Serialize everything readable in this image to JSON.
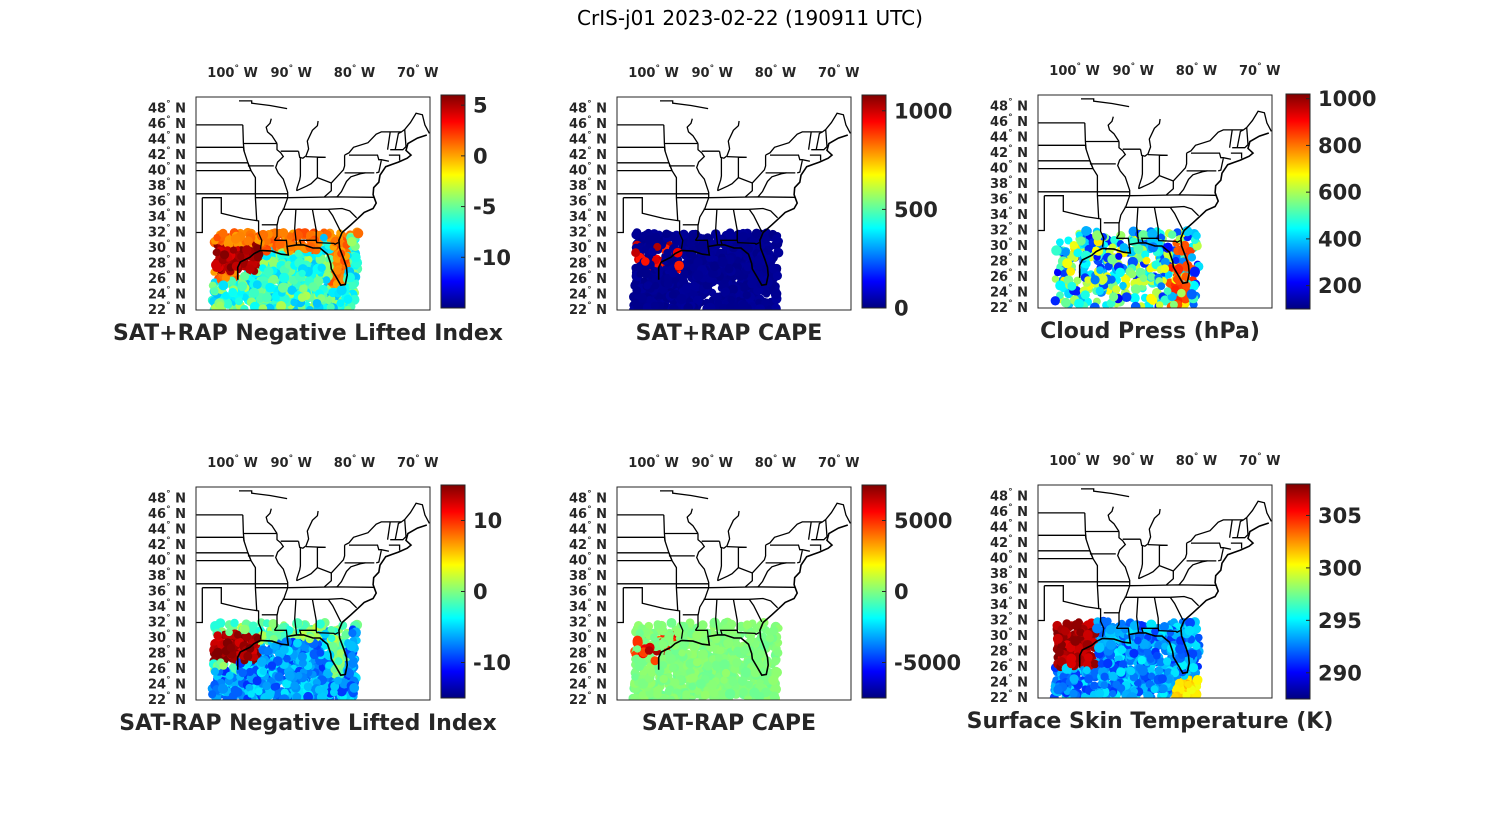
{
  "title": "CrIS-j01 2023-02-22 (190911 UTC)",
  "map": {
    "lon_labels": [
      "100",
      "90",
      "80",
      "70"
    ],
    "lon_suffix": "W",
    "lat_labels": [
      "48",
      "46",
      "44",
      "42",
      "40",
      "38",
      "36",
      "34",
      "32",
      "30",
      "28",
      "26",
      "24",
      "22"
    ],
    "lat_suffix": "N",
    "degree_symbol": "°",
    "extent": {
      "lon": [
        -104,
        -67
      ],
      "lat": [
        22,
        49.5
      ]
    }
  },
  "chart_data": [
    {
      "type": "heatmap",
      "title": "SAT+RAP Negative Lifted Index",
      "colormap": "jet",
      "colorbar": {
        "range": [
          -15,
          6
        ],
        "ticks": [
          5,
          0,
          -5,
          -10
        ],
        "tick_labels": [
          "5",
          "0",
          "-5",
          "-10"
        ]
      },
      "data_region": {
        "lon": [
          -101,
          -79
        ],
        "lat": [
          22,
          31.5
        ]
      },
      "typical_values": {
        "land_north": 0,
        "gulf": -6,
        "coast_texas": 6
      }
    },
    {
      "type": "heatmap",
      "title": "SAT+RAP CAPE",
      "colormap": "jet",
      "colorbar": {
        "range": [
          0,
          1080
        ],
        "ticks": [
          1000,
          500,
          0
        ],
        "tick_labels": [
          "1000",
          "500",
          "0"
        ]
      },
      "data_region": {
        "lon": [
          -101,
          -79
        ],
        "lat": [
          22,
          31.5
        ]
      },
      "typical_values": {
        "background": 0,
        "coast_texas": 1000
      }
    },
    {
      "type": "heatmap",
      "title": "Cloud Press (hPa)",
      "colormap": "jet",
      "colorbar": {
        "range": [
          100,
          1020
        ],
        "ticks": [
          1000,
          800,
          600,
          400,
          200
        ],
        "tick_labels": [
          "1000",
          "800",
          "600",
          "400",
          "200"
        ]
      },
      "data_region": {
        "lon": [
          -101,
          -79
        ],
        "lat": [
          22,
          32
        ]
      },
      "typical_values": {
        "gulf": 300,
        "scattered": 600,
        "florida": 850
      }
    },
    {
      "type": "heatmap",
      "title": "SAT-RAP Negative Lifted Index",
      "colormap": "jet",
      "colorbar": {
        "range": [
          -15,
          15
        ],
        "ticks": [
          10,
          0,
          -10
        ],
        "tick_labels": [
          "10",
          "0",
          "-10"
        ]
      },
      "data_region": {
        "lon": [
          -101,
          -79
        ],
        "lat": [
          22,
          31
        ]
      },
      "typical_values": {
        "gulf": -7,
        "coast_texas": 15
      }
    },
    {
      "type": "heatmap",
      "title": "SAT-RAP CAPE",
      "colormap": "jet",
      "colorbar": {
        "range": [
          -7500,
          7500
        ],
        "ticks": [
          5000,
          0,
          -5000
        ],
        "tick_labels": [
          "5000",
          "0",
          "-5000"
        ]
      },
      "data_region": {
        "lon": [
          -101,
          -79
        ],
        "lat": [
          22,
          31
        ]
      },
      "typical_values": {
        "background": 0,
        "coast_texas": 5000
      }
    },
    {
      "type": "heatmap",
      "title": "Surface Skin Temperature (K)",
      "colormap": "jet",
      "colorbar": {
        "range": [
          287.5,
          308
        ],
        "ticks": [
          305,
          300,
          295,
          290
        ],
        "tick_labels": [
          "305",
          "300",
          "295",
          "290"
        ]
      },
      "data_region": {
        "lon": [
          -101,
          -79
        ],
        "lat": [
          22,
          31
        ]
      },
      "typical_values": {
        "gulf": 293,
        "texas": 307,
        "florida_south": 300
      }
    }
  ]
}
